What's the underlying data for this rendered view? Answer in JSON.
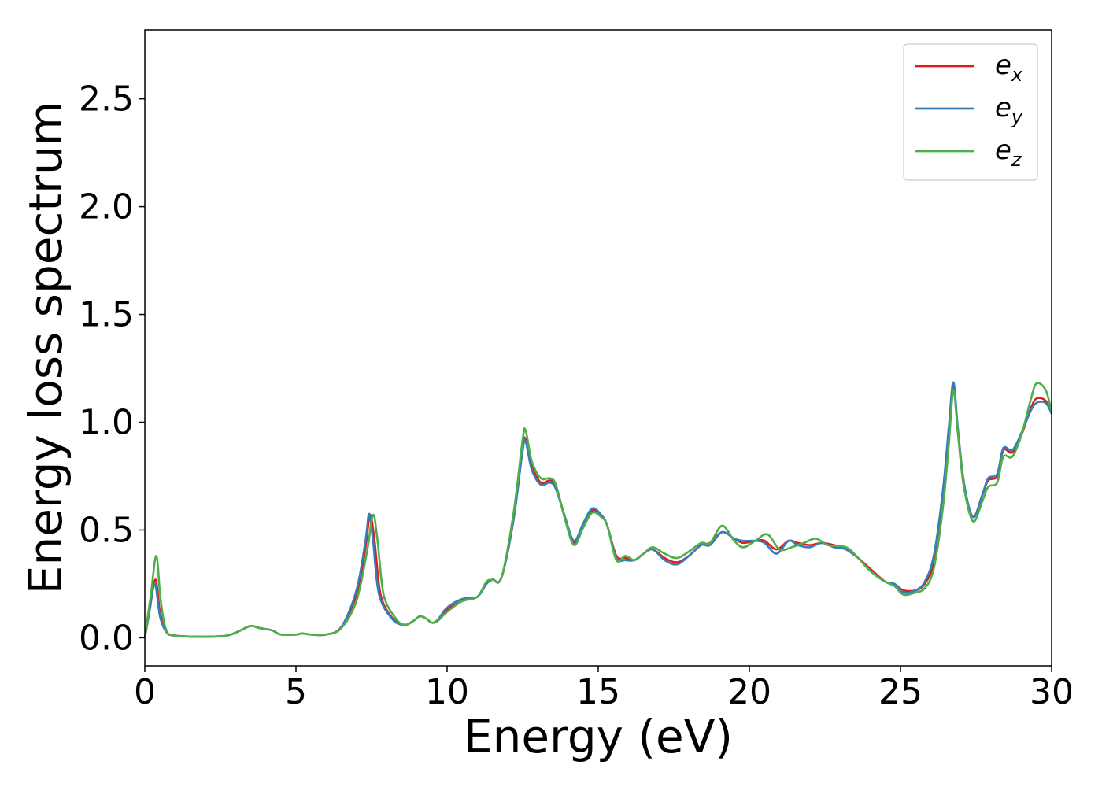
{
  "chart_data": {
    "type": "line",
    "xlabel": "Energy (eV)",
    "ylabel": "Energy loss spectrum",
    "xlim": [
      0,
      30
    ],
    "ylim": [
      -0.13,
      2.82
    ],
    "xticks": [
      0,
      5,
      10,
      15,
      20,
      25,
      30
    ],
    "xtick_labels": [
      "0",
      "5",
      "10",
      "15",
      "20",
      "25",
      "30"
    ],
    "yticks": [
      0.0,
      0.5,
      1.0,
      1.5,
      2.0,
      2.5
    ],
    "ytick_labels": [
      "0.0",
      "0.5",
      "1.0",
      "1.5",
      "2.0",
      "2.5"
    ],
    "grid": false,
    "legend_position": "top-right",
    "series": [
      {
        "name": "e",
        "subscript": "x",
        "color": "#e41a1c",
        "points": [
          [
            0,
            0
          ],
          [
            0.15,
            0.12
          ],
          [
            0.35,
            0.27
          ],
          [
            0.5,
            0.12
          ],
          [
            0.7,
            0.03
          ],
          [
            1,
            0.01
          ],
          [
            2,
            0.005
          ],
          [
            2.7,
            0.01
          ],
          [
            3.1,
            0.03
          ],
          [
            3.5,
            0.055
          ],
          [
            3.8,
            0.045
          ],
          [
            4.2,
            0.035
          ],
          [
            4.5,
            0.015
          ],
          [
            5,
            0.015
          ],
          [
            5.2,
            0.02
          ],
          [
            5.5,
            0.015
          ],
          [
            6,
            0.015
          ],
          [
            6.5,
            0.05
          ],
          [
            7,
            0.2
          ],
          [
            7.3,
            0.42
          ],
          [
            7.45,
            0.57
          ],
          [
            7.6,
            0.45
          ],
          [
            7.8,
            0.2
          ],
          [
            8.2,
            0.09
          ],
          [
            8.6,
            0.06
          ],
          [
            8.9,
            0.08
          ],
          [
            9.1,
            0.1
          ],
          [
            9.3,
            0.09
          ],
          [
            9.5,
            0.07
          ],
          [
            9.7,
            0.08
          ],
          [
            10,
            0.13
          ],
          [
            10.5,
            0.17
          ],
          [
            11,
            0.19
          ],
          [
            11.3,
            0.25
          ],
          [
            11.5,
            0.27
          ],
          [
            11.8,
            0.28
          ],
          [
            12.2,
            0.55
          ],
          [
            12.5,
            0.88
          ],
          [
            12.6,
            0.92
          ],
          [
            12.8,
            0.8
          ],
          [
            13.1,
            0.72
          ],
          [
            13.4,
            0.73
          ],
          [
            13.6,
            0.7
          ],
          [
            13.9,
            0.56
          ],
          [
            14.2,
            0.44
          ],
          [
            14.5,
            0.52
          ],
          [
            14.8,
            0.59
          ],
          [
            15.1,
            0.57
          ],
          [
            15.3,
            0.52
          ],
          [
            15.6,
            0.38
          ],
          [
            15.9,
            0.37
          ],
          [
            16.2,
            0.36
          ],
          [
            16.5,
            0.39
          ],
          [
            16.8,
            0.41
          ],
          [
            17.2,
            0.37
          ],
          [
            17.6,
            0.35
          ],
          [
            18,
            0.38
          ],
          [
            18.4,
            0.43
          ],
          [
            18.7,
            0.44
          ],
          [
            19.1,
            0.49
          ],
          [
            19.5,
            0.46
          ],
          [
            19.8,
            0.44
          ],
          [
            20.2,
            0.45
          ],
          [
            20.5,
            0.45
          ],
          [
            20.9,
            0.41
          ],
          [
            21.3,
            0.45
          ],
          [
            21.6,
            0.44
          ],
          [
            22,
            0.43
          ],
          [
            22.4,
            0.44
          ],
          [
            22.8,
            0.43
          ],
          [
            23.2,
            0.41
          ],
          [
            23.6,
            0.37
          ],
          [
            24,
            0.32
          ],
          [
            24.5,
            0.26
          ],
          [
            24.8,
            0.25
          ],
          [
            25.1,
            0.22
          ],
          [
            25.5,
            0.22
          ],
          [
            25.8,
            0.25
          ],
          [
            26.1,
            0.35
          ],
          [
            26.4,
            0.65
          ],
          [
            26.6,
            0.95
          ],
          [
            26.75,
            1.17
          ],
          [
            26.9,
            0.95
          ],
          [
            27.1,
            0.7
          ],
          [
            27.4,
            0.56
          ],
          [
            27.7,
            0.66
          ],
          [
            27.9,
            0.73
          ],
          [
            28.2,
            0.75
          ],
          [
            28.4,
            0.87
          ],
          [
            28.7,
            0.86
          ],
          [
            29,
            0.94
          ],
          [
            29.3,
            1.06
          ],
          [
            29.5,
            1.11
          ],
          [
            29.8,
            1.1
          ],
          [
            30,
            1.04
          ]
        ]
      },
      {
        "name": "e",
        "subscript": "y",
        "color": "#377eb8",
        "points": [
          [
            0,
            0
          ],
          [
            0.15,
            0.12
          ],
          [
            0.33,
            0.25
          ],
          [
            0.5,
            0.1
          ],
          [
            0.7,
            0.03
          ],
          [
            1,
            0.01
          ],
          [
            2,
            0.005
          ],
          [
            2.7,
            0.01
          ],
          [
            3.1,
            0.03
          ],
          [
            3.5,
            0.055
          ],
          [
            3.8,
            0.045
          ],
          [
            4.2,
            0.035
          ],
          [
            4.5,
            0.015
          ],
          [
            5,
            0.015
          ],
          [
            5.2,
            0.02
          ],
          [
            5.5,
            0.015
          ],
          [
            6,
            0.015
          ],
          [
            6.5,
            0.05
          ],
          [
            7,
            0.22
          ],
          [
            7.3,
            0.45
          ],
          [
            7.42,
            0.575
          ],
          [
            7.55,
            0.45
          ],
          [
            7.75,
            0.2
          ],
          [
            8.2,
            0.085
          ],
          [
            8.6,
            0.06
          ],
          [
            8.9,
            0.08
          ],
          [
            9.1,
            0.1
          ],
          [
            9.3,
            0.09
          ],
          [
            9.5,
            0.07
          ],
          [
            9.7,
            0.085
          ],
          [
            10,
            0.14
          ],
          [
            10.5,
            0.18
          ],
          [
            11,
            0.19
          ],
          [
            11.3,
            0.25
          ],
          [
            11.5,
            0.27
          ],
          [
            11.8,
            0.28
          ],
          [
            12.2,
            0.55
          ],
          [
            12.5,
            0.87
          ],
          [
            12.6,
            0.91
          ],
          [
            12.8,
            0.78
          ],
          [
            13.1,
            0.71
          ],
          [
            13.4,
            0.72
          ],
          [
            13.6,
            0.69
          ],
          [
            13.9,
            0.56
          ],
          [
            14.2,
            0.45
          ],
          [
            14.5,
            0.53
          ],
          [
            14.8,
            0.6
          ],
          [
            15.1,
            0.57
          ],
          [
            15.3,
            0.52
          ],
          [
            15.6,
            0.37
          ],
          [
            15.9,
            0.36
          ],
          [
            16.2,
            0.36
          ],
          [
            16.5,
            0.39
          ],
          [
            16.8,
            0.41
          ],
          [
            17.2,
            0.36
          ],
          [
            17.6,
            0.34
          ],
          [
            18,
            0.38
          ],
          [
            18.4,
            0.43
          ],
          [
            18.7,
            0.43
          ],
          [
            19.1,
            0.49
          ],
          [
            19.5,
            0.46
          ],
          [
            19.8,
            0.45
          ],
          [
            20.2,
            0.45
          ],
          [
            20.5,
            0.44
          ],
          [
            20.9,
            0.39
          ],
          [
            21.3,
            0.45
          ],
          [
            21.6,
            0.43
          ],
          [
            22,
            0.42
          ],
          [
            22.4,
            0.44
          ],
          [
            22.8,
            0.42
          ],
          [
            23.2,
            0.41
          ],
          [
            23.6,
            0.37
          ],
          [
            24,
            0.31
          ],
          [
            24.5,
            0.26
          ],
          [
            24.8,
            0.25
          ],
          [
            25.1,
            0.21
          ],
          [
            25.5,
            0.22
          ],
          [
            25.8,
            0.26
          ],
          [
            26.1,
            0.38
          ],
          [
            26.4,
            0.68
          ],
          [
            26.6,
            0.98
          ],
          [
            26.75,
            1.185
          ],
          [
            26.9,
            0.97
          ],
          [
            27.1,
            0.72
          ],
          [
            27.4,
            0.56
          ],
          [
            27.7,
            0.66
          ],
          [
            27.9,
            0.74
          ],
          [
            28.2,
            0.76
          ],
          [
            28.4,
            0.88
          ],
          [
            28.7,
            0.87
          ],
          [
            29,
            0.95
          ],
          [
            29.3,
            1.05
          ],
          [
            29.5,
            1.09
          ],
          [
            29.8,
            1.09
          ],
          [
            30,
            1.04
          ]
        ]
      },
      {
        "name": "e",
        "subscript": "z",
        "color": "#4daf4a",
        "points": [
          [
            0,
            0
          ],
          [
            0.2,
            0.2
          ],
          [
            0.38,
            0.38
          ],
          [
            0.52,
            0.18
          ],
          [
            0.7,
            0.04
          ],
          [
            1,
            0.01
          ],
          [
            2,
            0.005
          ],
          [
            2.7,
            0.01
          ],
          [
            3.1,
            0.03
          ],
          [
            3.5,
            0.055
          ],
          [
            3.8,
            0.045
          ],
          [
            4.2,
            0.035
          ],
          [
            4.5,
            0.015
          ],
          [
            5,
            0.015
          ],
          [
            5.2,
            0.02
          ],
          [
            5.5,
            0.015
          ],
          [
            6,
            0.015
          ],
          [
            6.5,
            0.045
          ],
          [
            7,
            0.17
          ],
          [
            7.35,
            0.4
          ],
          [
            7.55,
            0.57
          ],
          [
            7.7,
            0.45
          ],
          [
            7.9,
            0.2
          ],
          [
            8.3,
            0.09
          ],
          [
            8.6,
            0.06
          ],
          [
            8.9,
            0.08
          ],
          [
            9.1,
            0.1
          ],
          [
            9.3,
            0.09
          ],
          [
            9.5,
            0.07
          ],
          [
            9.7,
            0.08
          ],
          [
            10,
            0.12
          ],
          [
            10.5,
            0.17
          ],
          [
            11,
            0.19
          ],
          [
            11.3,
            0.26
          ],
          [
            11.5,
            0.27
          ],
          [
            11.8,
            0.28
          ],
          [
            12.2,
            0.58
          ],
          [
            12.5,
            0.92
          ],
          [
            12.6,
            0.96
          ],
          [
            12.8,
            0.82
          ],
          [
            13.1,
            0.74
          ],
          [
            13.4,
            0.74
          ],
          [
            13.6,
            0.71
          ],
          [
            13.9,
            0.55
          ],
          [
            14.2,
            0.43
          ],
          [
            14.5,
            0.51
          ],
          [
            14.8,
            0.58
          ],
          [
            15.1,
            0.56
          ],
          [
            15.3,
            0.52
          ],
          [
            15.6,
            0.36
          ],
          [
            15.9,
            0.38
          ],
          [
            16.2,
            0.36
          ],
          [
            16.5,
            0.39
          ],
          [
            16.8,
            0.42
          ],
          [
            17.2,
            0.39
          ],
          [
            17.6,
            0.37
          ],
          [
            18,
            0.4
          ],
          [
            18.4,
            0.44
          ],
          [
            18.7,
            0.44
          ],
          [
            19.1,
            0.52
          ],
          [
            19.5,
            0.45
          ],
          [
            19.8,
            0.42
          ],
          [
            20.2,
            0.45
          ],
          [
            20.6,
            0.48
          ],
          [
            21,
            0.41
          ],
          [
            21.4,
            0.42
          ],
          [
            21.8,
            0.44
          ],
          [
            22.2,
            0.46
          ],
          [
            22.6,
            0.43
          ],
          [
            23.2,
            0.42
          ],
          [
            23.6,
            0.37
          ],
          [
            24,
            0.31
          ],
          [
            24.5,
            0.26
          ],
          [
            24.8,
            0.24
          ],
          [
            25.1,
            0.2
          ],
          [
            25.5,
            0.21
          ],
          [
            25.8,
            0.23
          ],
          [
            26.1,
            0.32
          ],
          [
            26.4,
            0.6
          ],
          [
            26.6,
            0.9
          ],
          [
            26.75,
            1.15
          ],
          [
            26.9,
            0.95
          ],
          [
            27.1,
            0.7
          ],
          [
            27.4,
            0.54
          ],
          [
            27.7,
            0.63
          ],
          [
            27.9,
            0.7
          ],
          [
            28.2,
            0.72
          ],
          [
            28.4,
            0.84
          ],
          [
            28.7,
            0.84
          ],
          [
            29,
            0.94
          ],
          [
            29.3,
            1.1
          ],
          [
            29.5,
            1.18
          ],
          [
            29.8,
            1.15
          ],
          [
            30,
            1.05
          ]
        ]
      }
    ]
  }
}
